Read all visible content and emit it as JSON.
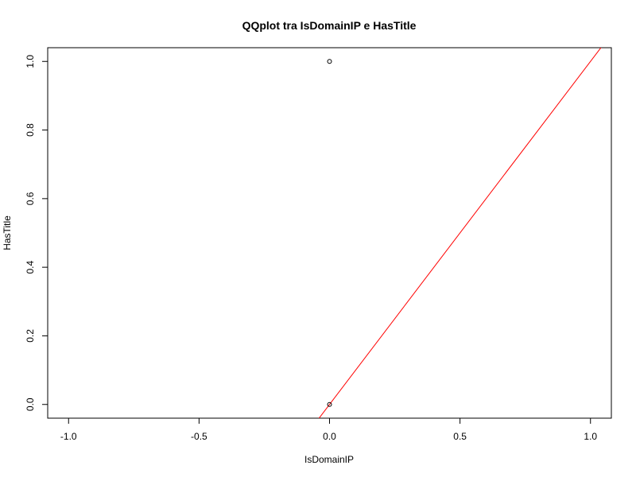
{
  "chart_data": {
    "type": "scatter",
    "title": "QQplot tra IsDomainIP e HasTitle",
    "xlabel": "IsDomainIP",
    "ylabel": "HasTitle",
    "xlim": [
      -1.08,
      1.08
    ],
    "ylim": [
      -0.04,
      1.04
    ],
    "x_ticks": [
      -1.0,
      -0.5,
      0.0,
      0.5,
      1.0
    ],
    "x_tick_labels": [
      "-1.0",
      "-0.5",
      "0.0",
      "0.5",
      "1.0"
    ],
    "y_ticks": [
      0.0,
      0.2,
      0.4,
      0.6,
      0.8,
      1.0
    ],
    "y_tick_labels": [
      "0.0",
      "0.2",
      "0.4",
      "0.6",
      "0.8",
      "1.0"
    ],
    "points": [
      {
        "x": 0.0,
        "y": 1.0
      },
      {
        "x": 0.0,
        "y": 0.0
      }
    ],
    "reference_line": {
      "x1": -0.05,
      "y1": -0.05,
      "x2": 1.05,
      "y2": 1.05,
      "color": "#ff0000"
    },
    "point_color": "#000000",
    "grid": false,
    "legend": "none"
  }
}
